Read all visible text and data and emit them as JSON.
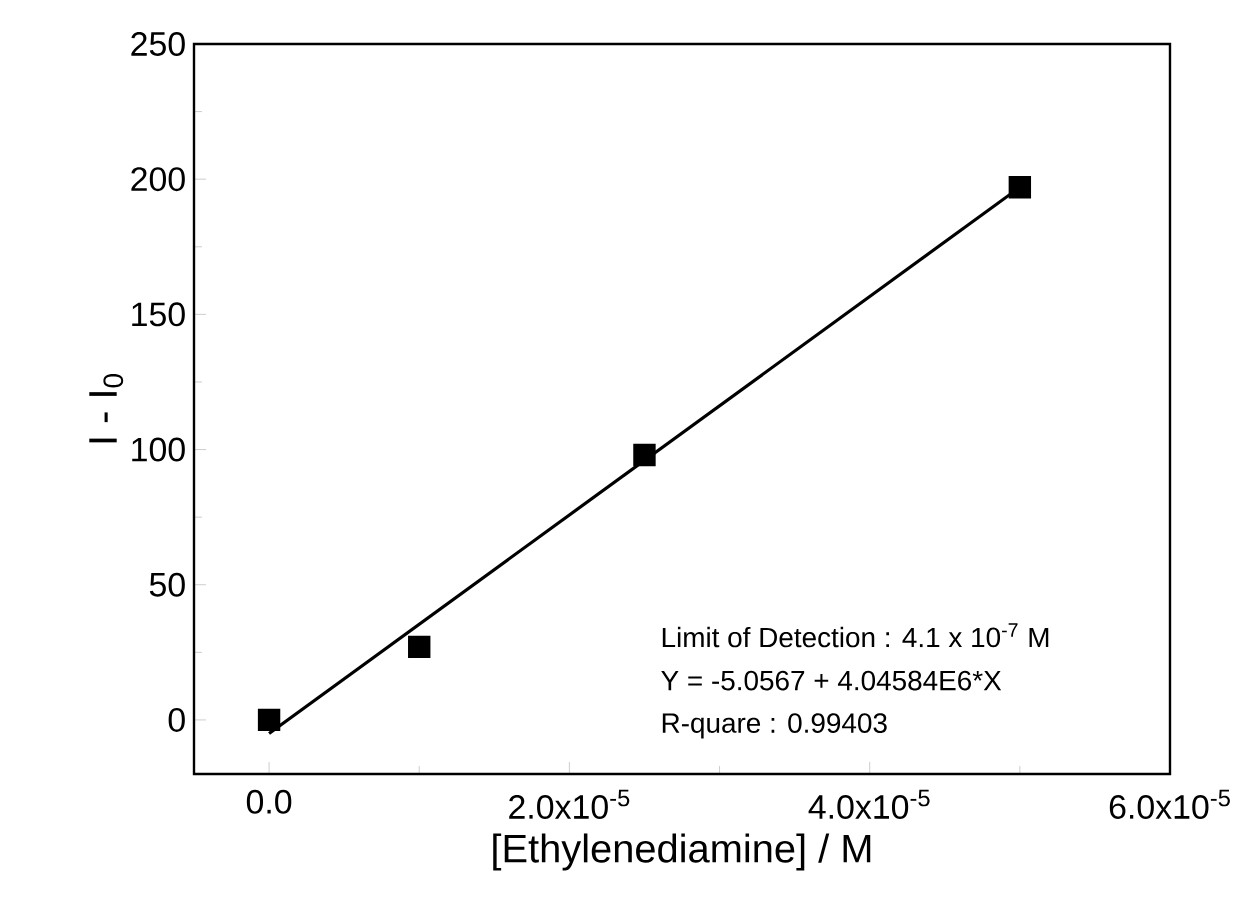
{
  "chart_data": {
    "type": "scatter",
    "xlabel": "[Ethylenediamine] / M",
    "ylabel": "I - I$_{0}$",
    "grid": false,
    "xlim": [
      -5e-06,
      6e-05
    ],
    "ylim": [
      -20,
      250
    ],
    "xticks": [
      {
        "value": 0,
        "label": "0.0"
      },
      {
        "value": 2e-05,
        "label": "2.0x10$^{-5}$"
      },
      {
        "value": 4e-05,
        "label": "4.0x10$^{-5}$"
      },
      {
        "value": 6e-05,
        "label": "6.0x10$^{-5}$"
      }
    ],
    "yticks": [
      0,
      50,
      100,
      150,
      200,
      250
    ],
    "x": [
      0,
      1e-05,
      2.5e-05,
      5e-05
    ],
    "series": [
      {
        "color": "#000000",
        "marker": "square",
        "values": [
          0,
          27,
          98,
          197
        ]
      },
      {
        "type": "line",
        "marker": "none",
        "color": "#000000",
        "x": [
          0,
          5e-05
        ],
        "values": [
          -5,
          197
        ]
      }
    ],
    "annotations": [
      "Limit of Detection : 4.1 x 10$^{-7}$ M",
      "Y = -5.0567 + 4.04584E6*X",
      "R-quare : 0.99403"
    ]
  }
}
